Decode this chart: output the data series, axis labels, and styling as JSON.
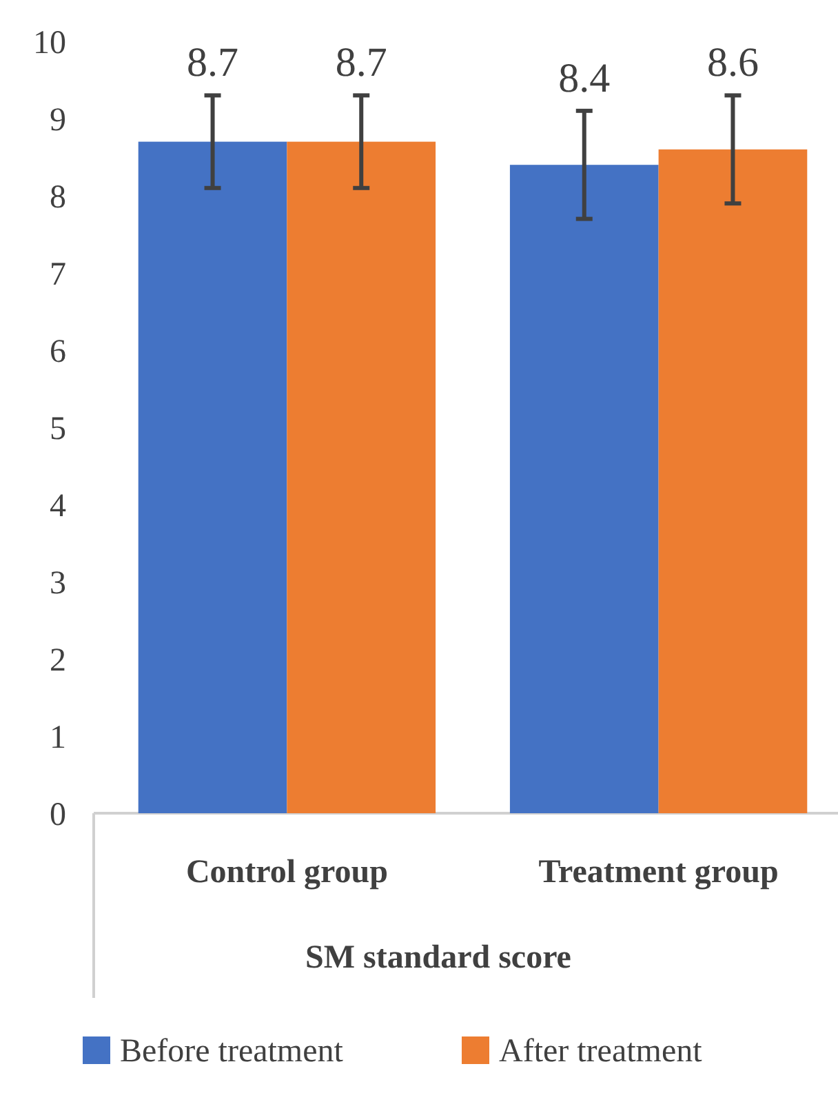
{
  "chart_data": {
    "type": "bar",
    "xlabel": "SM standard score",
    "categories": [
      "Control group",
      "Treatment group"
    ],
    "series": [
      {
        "name": "Before treatment",
        "color": "#4472c4",
        "values": [
          8.7,
          8.4
        ],
        "errors": [
          0.6,
          0.7
        ]
      },
      {
        "name": "After treatment",
        "color": "#ed7d31",
        "values": [
          8.7,
          8.6
        ],
        "errors": [
          0.6,
          0.7
        ]
      }
    ],
    "ylim": [
      0,
      10
    ],
    "yticks": [
      0,
      1,
      2,
      3,
      4,
      5,
      6,
      7,
      8,
      9,
      10
    ],
    "data_labels": true,
    "legend": "bottom"
  }
}
